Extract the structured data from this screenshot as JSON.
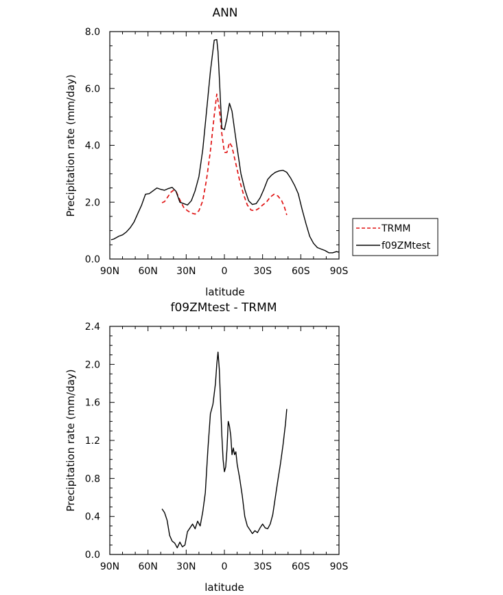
{
  "chart_data": [
    {
      "type": "line",
      "title": "ANN",
      "xlabel": "latitude",
      "ylabel": "Precipitation rate (mm/day)",
      "xlim": [
        90,
        -90
      ],
      "ylim": [
        0,
        8
      ],
      "x_ticks": [
        90,
        60,
        30,
        0,
        -30,
        -60,
        -90
      ],
      "x_tick_labels": [
        "90N",
        "60N",
        "30N",
        "0",
        "30S",
        "60S",
        "90S"
      ],
      "y_ticks": [
        0,
        2,
        4,
        6,
        8
      ],
      "y_tick_labels": [
        "0.0",
        "2.0",
        "4.0",
        "6.0",
        "8.0"
      ],
      "legend": {
        "placement": "right",
        "entries": [
          "TRMM",
          "f09ZMtest"
        ]
      },
      "series": [
        {
          "name": "TRMM",
          "color": "#e01010",
          "dash": "dashed",
          "x": [
            49,
            47,
            45,
            42,
            40,
            38,
            35,
            32,
            29,
            26,
            23,
            20,
            17,
            14,
            11,
            8,
            6,
            4,
            2,
            0,
            -2,
            -4,
            -6,
            -8,
            -10,
            -12,
            -15,
            -18,
            -21,
            -24,
            -27,
            -30,
            -33,
            -36,
            -39,
            -42,
            -45,
            -47,
            -49
          ],
          "y": [
            1.98,
            2.02,
            2.15,
            2.35,
            2.42,
            2.38,
            2.08,
            1.82,
            1.7,
            1.62,
            1.58,
            1.7,
            2.05,
            2.8,
            3.8,
            5.05,
            5.8,
            5.3,
            4.4,
            3.75,
            3.75,
            4.1,
            3.95,
            3.55,
            3.15,
            2.75,
            2.28,
            1.9,
            1.72,
            1.7,
            1.78,
            1.9,
            2.0,
            2.18,
            2.28,
            2.22,
            2.05,
            1.85,
            1.55
          ]
        },
        {
          "name": "f09ZMtest",
          "color": "#000000",
          "dash": "solid",
          "x": [
            89,
            87,
            85,
            83,
            80,
            77,
            74,
            71,
            68,
            65,
            62,
            59,
            56,
            53,
            50,
            47,
            44,
            41,
            38,
            35,
            32,
            29,
            26,
            23,
            20,
            17,
            14,
            11,
            8,
            6,
            5,
            4,
            3,
            2,
            0,
            -2,
            -4,
            -6,
            -8,
            -10,
            -13,
            -16,
            -19,
            -22,
            -25,
            -28,
            -31,
            -34,
            -37,
            -40,
            -43,
            -46,
            -49,
            -52,
            -55,
            -58,
            -61,
            -64,
            -67,
            -70,
            -73,
            -76,
            -79,
            -82,
            -85,
            -88,
            -90
          ],
          "y": [
            0.68,
            0.7,
            0.75,
            0.8,
            0.85,
            0.95,
            1.1,
            1.3,
            1.6,
            1.9,
            2.28,
            2.3,
            2.4,
            2.5,
            2.45,
            2.42,
            2.48,
            2.52,
            2.38,
            2.0,
            1.95,
            1.9,
            2.05,
            2.4,
            2.9,
            3.85,
            5.2,
            6.6,
            7.7,
            7.72,
            7.3,
            6.4,
            5.5,
            4.6,
            4.55,
            4.95,
            5.48,
            5.2,
            4.55,
            3.9,
            3.0,
            2.45,
            2.05,
            1.92,
            1.95,
            2.15,
            2.45,
            2.8,
            2.95,
            3.05,
            3.1,
            3.12,
            3.05,
            2.85,
            2.6,
            2.3,
            1.75,
            1.25,
            0.8,
            0.55,
            0.4,
            0.35,
            0.3,
            0.22,
            0.22,
            0.26,
            0.24
          ]
        }
      ]
    },
    {
      "type": "line",
      "title": "f09ZMtest - TRMM",
      "xlabel": "latitude",
      "ylabel": "Precipitation rate (mm/day)",
      "xlim": [
        90,
        -90
      ],
      "ylim": [
        0,
        2.4
      ],
      "x_ticks": [
        90,
        60,
        30,
        0,
        -30,
        -60,
        -90
      ],
      "x_tick_labels": [
        "90N",
        "60N",
        "30N",
        "0",
        "30S",
        "60S",
        "90S"
      ],
      "y_ticks": [
        0,
        0.4,
        0.8,
        1.2,
        1.6,
        2.0,
        2.4
      ],
      "y_tick_labels": [
        "0.0",
        "0.4",
        "0.8",
        "1.2",
        "1.6",
        "2.0",
        "2.4"
      ],
      "series": [
        {
          "color": "#000000",
          "dash": "solid",
          "x": [
            49,
            47,
            45,
            43,
            41,
            39,
            37,
            35,
            33,
            31,
            29,
            27,
            25,
            23,
            21,
            19,
            17,
            15,
            13,
            11,
            9,
            7,
            6,
            5,
            4,
            3,
            2,
            1,
            0,
            -1,
            -2,
            -3,
            -4,
            -5,
            -6,
            -7,
            -8,
            -9,
            -10,
            -12,
            -14,
            -16,
            -18,
            -20,
            -22,
            -24,
            -26,
            -28,
            -30,
            -32,
            -34,
            -36,
            -38,
            -40,
            -42,
            -44,
            -46,
            -48,
            -49
          ],
          "y": [
            0.48,
            0.44,
            0.36,
            0.2,
            0.14,
            0.12,
            0.07,
            0.13,
            0.08,
            0.1,
            0.24,
            0.28,
            0.32,
            0.27,
            0.35,
            0.3,
            0.45,
            0.65,
            1.1,
            1.48,
            1.58,
            1.8,
            2.0,
            2.13,
            1.95,
            1.6,
            1.25,
            1.0,
            0.87,
            0.92,
            1.1,
            1.4,
            1.35,
            1.25,
            1.05,
            1.12,
            1.05,
            1.08,
            0.95,
            0.8,
            0.62,
            0.4,
            0.3,
            0.26,
            0.22,
            0.25,
            0.23,
            0.28,
            0.32,
            0.28,
            0.27,
            0.32,
            0.42,
            0.6,
            0.78,
            0.95,
            1.15,
            1.38,
            1.53
          ]
        }
      ]
    }
  ]
}
